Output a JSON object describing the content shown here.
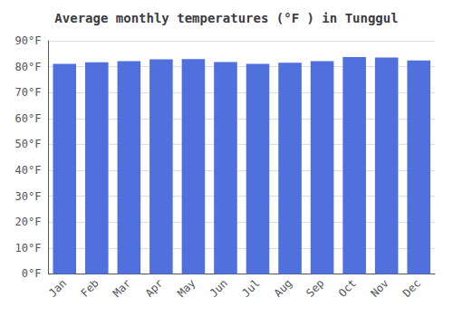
{
  "chart_data": {
    "type": "bar",
    "title": "Average monthly temperatures (°F ) in Tunggul",
    "categories": [
      "Jan",
      "Feb",
      "Mar",
      "Apr",
      "May",
      "Jun",
      "Jul",
      "Aug",
      "Sep",
      "Oct",
      "Nov",
      "Dec"
    ],
    "values": [
      81.1,
      81.7,
      82.1,
      82.8,
      82.9,
      81.8,
      81.1,
      81.5,
      82.1,
      83.7,
      83.5,
      82.4
    ],
    "ylim": [
      0,
      90
    ],
    "yticks": [
      {
        "value": 0,
        "label": "0°F"
      },
      {
        "value": 10,
        "label": "10°F"
      },
      {
        "value": 20,
        "label": "20°F"
      },
      {
        "value": 30,
        "label": "30°F"
      },
      {
        "value": 40,
        "label": "40°F"
      },
      {
        "value": 50,
        "label": "50°F"
      },
      {
        "value": 60,
        "label": "60°F"
      },
      {
        "value": 70,
        "label": "70°F"
      },
      {
        "value": 80,
        "label": "80°F"
      },
      {
        "value": 90,
        "label": "90°F"
      }
    ],
    "grid": true
  }
}
